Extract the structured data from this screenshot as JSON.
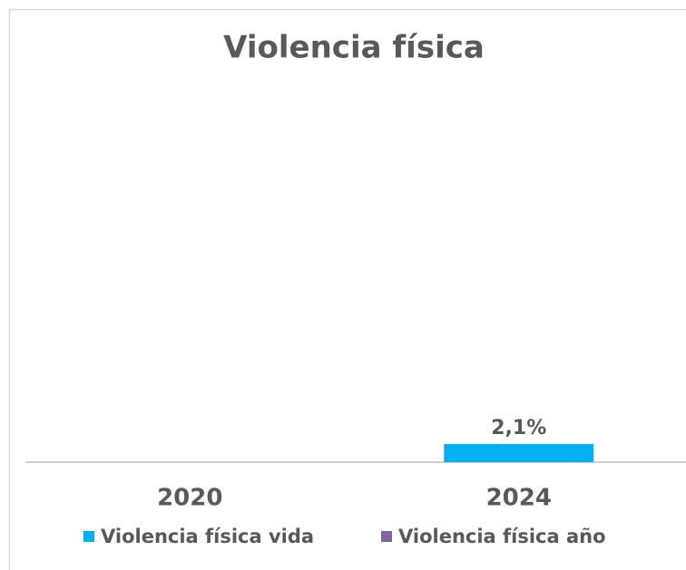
{
  "chart_data": {
    "type": "bar",
    "title": "Violencia física",
    "categories": [
      "2020",
      "2024"
    ],
    "series": [
      {
        "name": "Violencia física vida",
        "color": "#00b0f0",
        "values": [
          null,
          2.1
        ],
        "value_labels": [
          null,
          "2,1%"
        ]
      },
      {
        "name": "Violencia física año",
        "color": "#8064a2",
        "values": [
          null,
          null
        ]
      }
    ],
    "ylim": [
      0,
      45
    ]
  }
}
